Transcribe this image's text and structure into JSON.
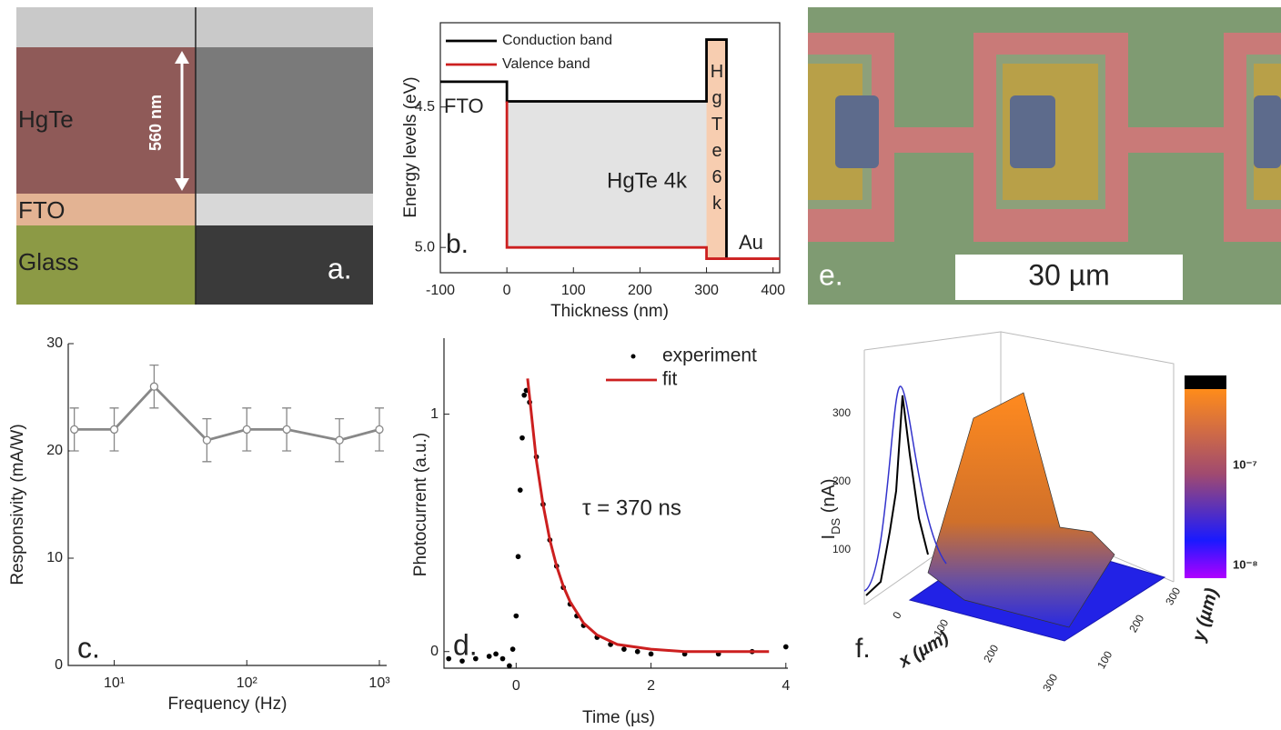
{
  "chart_data": [
    {
      "type": "line",
      "xlabel": "Thickness (nm)",
      "ylabel": "Energy levels (eV)",
      "xlim": [
        -100,
        410
      ],
      "xticks": [
        -100,
        0,
        100,
        200,
        300,
        400
      ],
      "ylim": [
        5.09,
        4.2
      ],
      "yticks": [
        4.5,
        {
          "value": 5,
          "label": "5.0"
        }
      ],
      "frame": "box",
      "legend": "upper left",
      "series": [
        {
          "name": "Conduction band",
          "color": "#000000",
          "style": "line",
          "x": [
            -100,
            0,
            0,
            300,
            300,
            330,
            330
          ],
          "values": [
            4.41,
            4.41,
            4.48,
            4.48,
            4.26,
            4.26,
            5.04
          ]
        },
        {
          "name": "Valence band",
          "color": "#cc1f1f",
          "style": "line",
          "x": [
            0,
            0,
            300,
            300,
            410
          ],
          "values": [
            4.48,
            5.0,
            5.0,
            5.04,
            5.04
          ]
        }
      ],
      "annotations": [
        "FTO",
        "HgTe 4k",
        "HgTe 6k",
        "Au",
        "b."
      ]
    },
    {
      "type": "line",
      "xlabel": "Frequency (Hz)",
      "ylabel": "Responsivity (mA/W)",
      "xlog": true,
      "xlim": [
        4.5,
        1135
      ],
      "xticks": [
        {
          "value": 10,
          "label": "10¹"
        },
        {
          "value": 100,
          "label": "10²"
        },
        {
          "value": 1000,
          "label": "10³"
        }
      ],
      "ylim": [
        0,
        30
      ],
      "yticks": [
        0,
        10,
        20,
        30
      ],
      "frame": "axes",
      "x": [
        5,
        10,
        20,
        50,
        100,
        200,
        500,
        1000
      ],
      "series": [
        {
          "color": "#888888",
          "style": "line-markers",
          "values": [
            22,
            22,
            26,
            21,
            22,
            22,
            21,
            22
          ],
          "errors": [
            2,
            2,
            2,
            2,
            2,
            2,
            2,
            2
          ]
        }
      ],
      "annotations": [
        "c."
      ]
    },
    {
      "type": "line",
      "xlabel": "Time (µs)",
      "ylabel": "Photocurrent (a.u.)",
      "xlim": [
        -1.07,
        4.03
      ],
      "xticks": [
        0,
        2,
        4
      ],
      "ylim": [
        -0.07,
        1.32
      ],
      "yticks": [
        0,
        1
      ],
      "frame": "axes",
      "legend": "upper right",
      "series": [
        {
          "name": "experiment",
          "color": "#000000",
          "style": "dots",
          "x": [
            -1,
            -0.8,
            -0.6,
            -0.4,
            -0.3,
            -0.2,
            -0.1,
            -0.05,
            0,
            0.03,
            0.06,
            0.09,
            0.12,
            0.15,
            0.2,
            0.3,
            0.4,
            0.5,
            0.6,
            0.7,
            0.8,
            0.9,
            1.0,
            1.2,
            1.4,
            1.6,
            1.8,
            2.0,
            2.5,
            3.0,
            3.5,
            4.0
          ],
          "values": [
            -0.03,
            -0.04,
            -0.03,
            -0.02,
            -0.01,
            -0.03,
            -0.06,
            0.01,
            0.15,
            0.4,
            0.68,
            0.9,
            1.08,
            1.1,
            1.05,
            0.82,
            0.62,
            0.47,
            0.36,
            0.27,
            0.2,
            0.15,
            0.11,
            0.06,
            0.03,
            0.01,
            0.0,
            -0.01,
            -0.01,
            -0.01,
            0.0,
            0.02
          ]
        },
        {
          "name": "fit",
          "color": "#cc1f1f",
          "style": "line",
          "x": [
            0.17,
            0.3,
            0.4,
            0.5,
            0.6,
            0.7,
            0.8,
            1.0,
            1.2,
            1.5,
            2.0,
            2.5,
            3.0,
            3.75
          ],
          "values": [
            1.15,
            0.805,
            0.618,
            0.47,
            0.36,
            0.275,
            0.21,
            0.12,
            0.07,
            0.03,
            0.01,
            0.0,
            0.0,
            0.0
          ]
        }
      ],
      "annotations": [
        "τ = 370 ns",
        "d."
      ]
    }
  ],
  "images": {
    "a": {
      "labels": [
        "HgTe",
        "FTO",
        "Glass"
      ],
      "scale": "560 nm",
      "panel": "a."
    },
    "e": {
      "scale": "30 µm",
      "panel": "e."
    },
    "f": {
      "z_label": {
        "main": "I",
        "sub": "DS",
        "unit": " (nA)"
      },
      "z_ticks": [
        100,
        200,
        300
      ],
      "x_label": "x (µm)",
      "x_ticks": [
        0,
        100,
        200,
        300
      ],
      "y_label": "y (µm)",
      "y_ticks": [
        100,
        200,
        300
      ],
      "colorbar": [
        "10⁻⁷",
        "10⁻⁸"
      ],
      "panel": "f."
    }
  }
}
